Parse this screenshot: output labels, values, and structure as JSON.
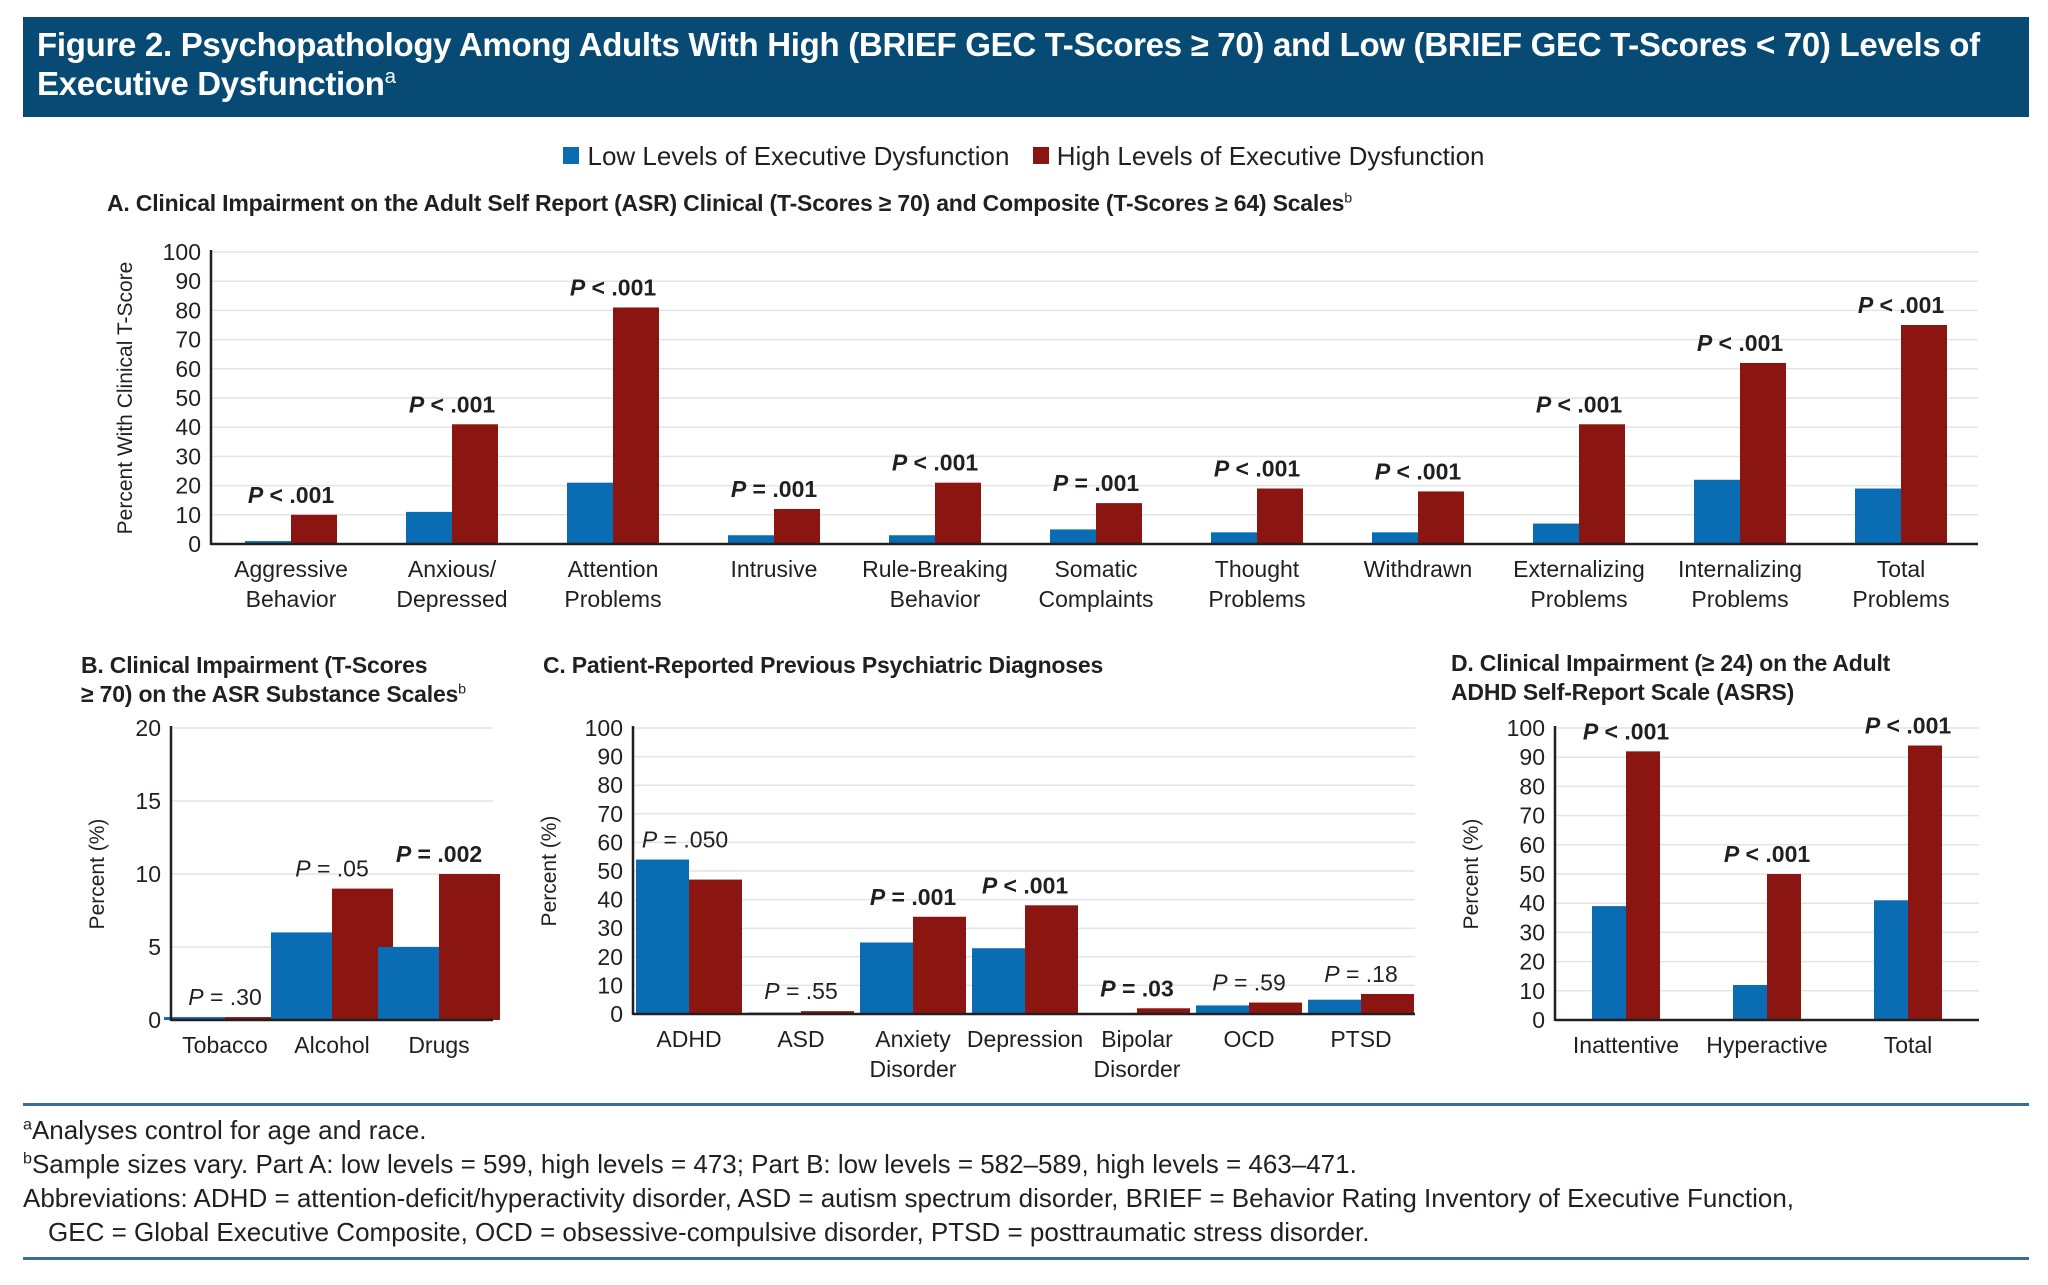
{
  "header": {
    "title": "Figure 2. Psychopathology Among Adults With High (BRIEF GEC T-Scores ≥ 70) and Low (BRIEF GEC T-Scores < 70) Levels of Executive Dysfunction",
    "title_sup": "a"
  },
  "legend": {
    "items": [
      {
        "label": "Low Levels of Executive Dysfunction",
        "color": "#0a6db3"
      },
      {
        "label": "High Levels of Executive Dysfunction",
        "color": "#8b1510"
      }
    ]
  },
  "colors": {
    "low": "#0a6db3",
    "high": "#8b1510",
    "header_bg": "#074a74",
    "rule": "#3a6e98"
  },
  "chart_data": [
    {
      "id": "A",
      "type": "bar",
      "title": "A. Clinical Impairment on the Adult Self Report (ASR) Clinical (T-Scores ≥ 70) and Composite (T-Scores ≥ 64) Scales",
      "title_sup": "b",
      "xlabel": "",
      "ylabel": "Percent With Clinical T-Score",
      "ylim": [
        0,
        100
      ],
      "yticks": [
        0,
        10,
        20,
        30,
        40,
        50,
        60,
        70,
        80,
        90,
        100
      ],
      "grid": true,
      "categories": [
        [
          "Aggressive",
          "Behavior"
        ],
        [
          "Anxious/",
          "Depressed"
        ],
        [
          "Attention",
          "Problems"
        ],
        [
          "Intrusive"
        ],
        [
          "Rule-Breaking",
          "Behavior"
        ],
        [
          "Somatic",
          "Complaints"
        ],
        [
          "Thought",
          "Problems"
        ],
        [
          "Withdrawn"
        ],
        [
          "Externalizing",
          "Problems"
        ],
        [
          "Internalizing",
          "Problems"
        ],
        [
          "Total",
          "Problems"
        ]
      ],
      "series": [
        {
          "name": "Low Levels of Executive Dysfunction",
          "values": [
            1,
            11,
            21,
            3,
            3,
            5,
            4,
            4,
            7,
            22,
            19
          ]
        },
        {
          "name": "High Levels of Executive Dysfunction",
          "values": [
            10,
            41,
            81,
            12,
            21,
            14,
            19,
            18,
            41,
            62,
            75
          ]
        }
      ],
      "annotations": [
        {
          "op": "<",
          "p": ".001",
          "bold": true
        },
        {
          "op": "<",
          "p": ".001",
          "bold": true
        },
        {
          "op": "<",
          "p": ".001",
          "bold": true
        },
        {
          "op": "=",
          "p": ".001",
          "bold": true
        },
        {
          "op": "<",
          "p": ".001",
          "bold": true
        },
        {
          "op": "=",
          "p": ".001",
          "bold": true
        },
        {
          "op": "<",
          "p": ".001",
          "bold": true
        },
        {
          "op": "<",
          "p": ".001",
          "bold": true
        },
        {
          "op": "<",
          "p": ".001",
          "bold": true
        },
        {
          "op": "<",
          "p": ".001",
          "bold": true
        },
        {
          "op": "<",
          "p": ".001",
          "bold": true
        }
      ]
    },
    {
      "id": "B",
      "type": "bar",
      "title": "B. Clinical Impairment (T-Scores ≥ 70) on the ASR Substance Scales",
      "title_lines": [
        "B. Clinical Impairment (T-Scores",
        " ≥ 70) on the ASR Substance Scales"
      ],
      "title_sup": "b",
      "xlabel": "",
      "ylabel": "Percent (%)",
      "ylim": [
        0,
        20
      ],
      "yticks": [
        0,
        5,
        10,
        15,
        20
      ],
      "grid": true,
      "categories": [
        [
          "Tobacco"
        ],
        [
          "Alcohol"
        ],
        [
          "Drugs"
        ]
      ],
      "series": [
        {
          "name": "Low Levels of Executive Dysfunction",
          "values": [
            0.2,
            6,
            5
          ]
        },
        {
          "name": "High Levels of Executive Dysfunction",
          "values": [
            0.2,
            9,
            10
          ]
        }
      ],
      "annotations": [
        {
          "op": "=",
          "p": ".30",
          "bold": false
        },
        {
          "op": "=",
          "p": ".05",
          "bold": false
        },
        {
          "op": "=",
          "p": ".002",
          "bold": true
        }
      ]
    },
    {
      "id": "C",
      "type": "bar",
      "title": "C. Patient-Reported Previous Psychiatric Diagnoses",
      "xlabel": "",
      "ylabel": "Percent (%)",
      "ylim": [
        0,
        100
      ],
      "yticks": [
        0,
        10,
        20,
        30,
        40,
        50,
        60,
        70,
        80,
        90,
        100
      ],
      "grid": true,
      "categories": [
        [
          "ADHD"
        ],
        [
          "ASD"
        ],
        [
          "Anxiety",
          "Disorder"
        ],
        [
          "Depression"
        ],
        [
          "Bipolar",
          "Disorder"
        ],
        [
          "OCD"
        ],
        [
          "PTSD"
        ]
      ],
      "series": [
        {
          "name": "Low Levels of Executive Dysfunction",
          "values": [
            54,
            0.5,
            25,
            23,
            0.3,
            3,
            5
          ]
        },
        {
          "name": "High Levels of Executive Dysfunction",
          "values": [
            47,
            1,
            34,
            38,
            2,
            4,
            7
          ]
        }
      ],
      "annotations": [
        {
          "op": "=",
          "p": ".050",
          "bold": false
        },
        {
          "op": "=",
          "p": ".55",
          "bold": false
        },
        {
          "op": "=",
          "p": ".001",
          "bold": true
        },
        {
          "op": "<",
          "p": ".001",
          "bold": true
        },
        {
          "op": "=",
          "p": ".03",
          "bold": true
        },
        {
          "op": "=",
          "p": ".59",
          "bold": false
        },
        {
          "op": "=",
          "p": ".18",
          "bold": false
        }
      ]
    },
    {
      "id": "D",
      "type": "bar",
      "title": "D. Clinical Impairment (≥ 24) on the Adult ADHD Self-Report Scale (ASRS)",
      "title_lines": [
        "D. Clinical Impairment (≥ 24) on the Adult",
        "ADHD Self-Report Scale (ASRS)"
      ],
      "xlabel": "",
      "ylabel": "Percent (%)",
      "ylim": [
        0,
        100
      ],
      "yticks": [
        0,
        10,
        20,
        30,
        40,
        50,
        60,
        70,
        80,
        90,
        100
      ],
      "grid": true,
      "categories": [
        [
          "Inattentive"
        ],
        [
          "Hyperactive"
        ],
        [
          "Total"
        ]
      ],
      "series": [
        {
          "name": "Low Levels of Executive Dysfunction",
          "values": [
            39,
            12,
            41
          ]
        },
        {
          "name": "High Levels of Executive Dysfunction",
          "values": [
            92,
            50,
            94
          ]
        }
      ],
      "annotations": [
        {
          "op": "<",
          "p": ".001",
          "bold": true
        },
        {
          "op": "<",
          "p": ".001",
          "bold": true
        },
        {
          "op": "<",
          "p": ".001",
          "bold": true
        }
      ]
    }
  ],
  "footnotes": [
    {
      "sup": "a",
      "text": "Analyses control for age and race."
    },
    {
      "sup": "b",
      "text": "Sample sizes vary. Part A: low levels = 599, high levels = 473; Part B: low levels = 582–589, high levels = 463–471."
    },
    {
      "sup": "",
      "text": "Abbreviations: ADHD = attention-deficit/hyperactivity disorder, ASD = autism spectrum disorder, BRIEF = Behavior Rating Inventory of Executive Function,"
    },
    {
      "sup": "",
      "text": "GEC = Global Executive Composite, OCD = obsessive-compulsive disorder, PTSD = posttraumatic stress disorder."
    }
  ]
}
